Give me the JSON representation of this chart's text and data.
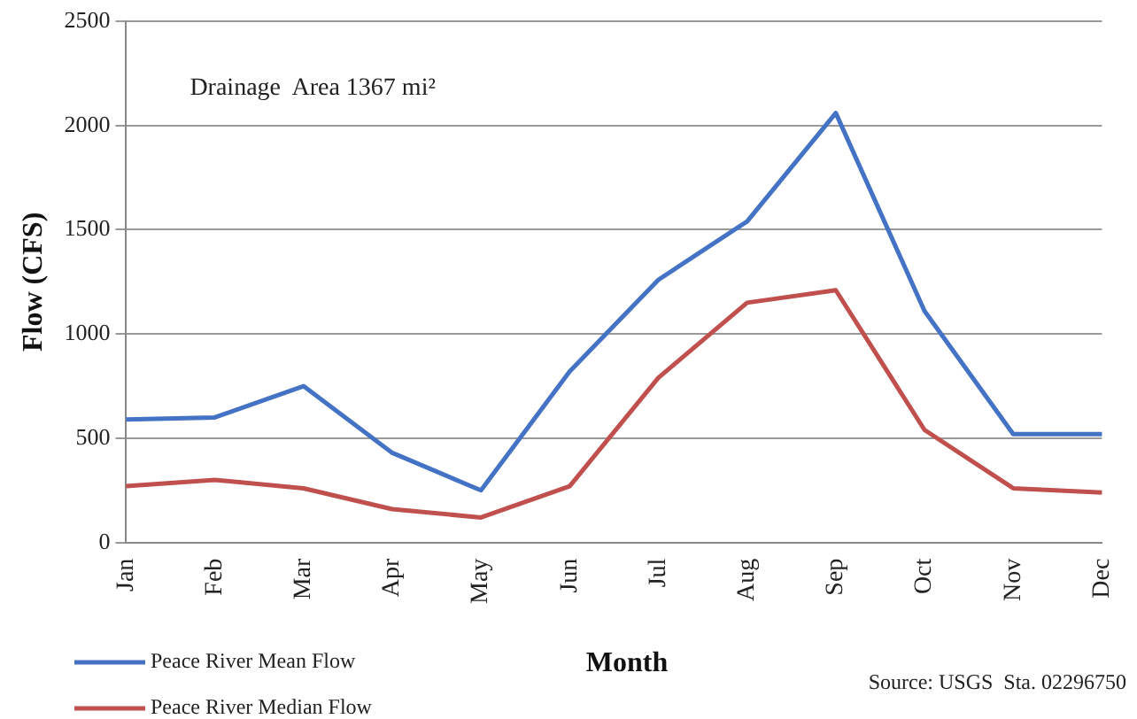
{
  "chart_data": {
    "type": "line",
    "xlabel": "Month",
    "ylabel": "Flow (CFS)",
    "annotations": [
      "Drainage  Area 1367 mi²",
      "Source: USGS  Sta. 02296750"
    ],
    "categories": [
      "Jan",
      "Feb",
      "Mar",
      "Apr",
      "May",
      "Jun",
      "Jul",
      "Aug",
      "Sep",
      "Oct",
      "Nov",
      "Dec"
    ],
    "series": [
      {
        "name": "Peace River Mean Flow",
        "color": "#4472c4",
        "values": [
          590,
          600,
          750,
          430,
          250,
          820,
          1260,
          1540,
          2060,
          1110,
          520,
          520
        ]
      },
      {
        "name": "Peace River Median Flow",
        "color": "#c0504d",
        "values": [
          270,
          300,
          260,
          160,
          120,
          270,
          790,
          1150,
          1210,
          540,
          260,
          240
        ]
      }
    ],
    "ylim": [
      0,
      2500
    ],
    "yticks": [
      0,
      500,
      1000,
      1500,
      2000,
      2500
    ],
    "grid": "y",
    "legend": "bottom left",
    "marker": "none",
    "line_style": "solid"
  }
}
